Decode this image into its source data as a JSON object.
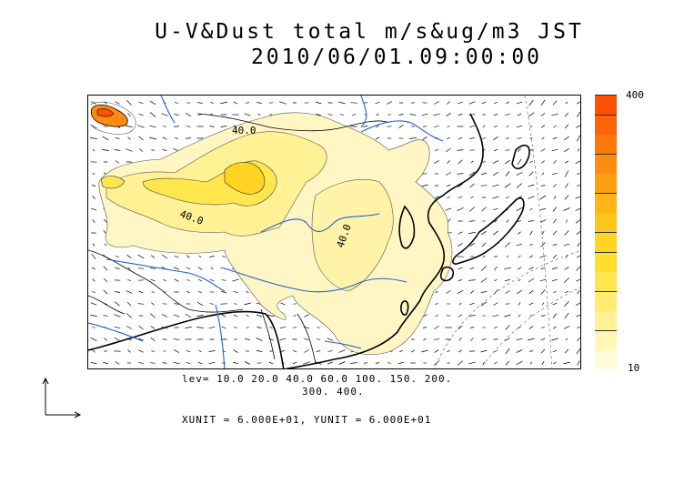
{
  "title": {
    "line1": "U-V&Dust total m/s&ug/m3 JST",
    "line2": "2010/06/01.09:00:00"
  },
  "colorbar": {
    "max_label": "400",
    "min_label": "10",
    "colors": [
      "#fffbd8",
      "#fff6b8",
      "#fff194",
      "#ffec70",
      "#ffe64c",
      "#ffdf2c",
      "#ffd422",
      "#ffc51c",
      "#ffb418",
      "#ffa014",
      "#ff8c10",
      "#ff780c",
      "#ff6408",
      "#ff5005"
    ]
  },
  "levels": {
    "line1": "lev= 10.0 20.0 40.0 60.0 100. 150. 200.",
    "line2": "300. 400."
  },
  "units": "XUNIT = 6.000E+01, YUNIT = 6.000E+01",
  "map": {
    "contour_labels": [
      "40.0",
      "40.0",
      "40.0"
    ],
    "colors": {
      "coast": "#000000",
      "river": "#1e5fd9",
      "dust_low": "#fff6b8",
      "dust_mid": "#ffe64c",
      "dust_high": "#ffc51c"
    }
  }
}
